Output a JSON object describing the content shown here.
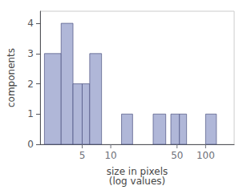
{
  "chart_data": {
    "type": "bar",
    "xlabel": "size in pixels\n(log values)",
    "ylabel": "components",
    "lefts": [
      2,
      3,
      4,
      5,
      6,
      13,
      28,
      43,
      53,
      100
    ],
    "rights": [
      3,
      4,
      5,
      6,
      8,
      17,
      38,
      53,
      63,
      130
    ],
    "values": [
      3,
      4,
      2,
      2,
      3,
      1,
      1,
      1,
      1,
      1
    ],
    "color": "#b0b7d8",
    "log": "x",
    "xlim": [
      1.8,
      200
    ],
    "ylim": [
      0,
      4.4
    ],
    "xticks": [
      5,
      10,
      50,
      100
    ],
    "yticks": [
      0,
      1,
      2,
      3,
      4
    ],
    "grid": false
  }
}
